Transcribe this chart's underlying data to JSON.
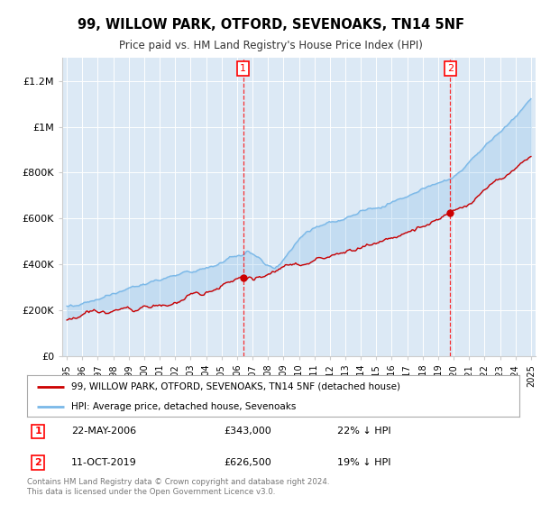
{
  "title": "99, WILLOW PARK, OTFORD, SEVENOAKS, TN14 5NF",
  "subtitle": "Price paid vs. HM Land Registry's House Price Index (HPI)",
  "bg_color": "#dce9f5",
  "plot_bg_color": "#dce9f5",
  "hpi_color": "#7ab8e8",
  "sale_color": "#cc0000",
  "sale1_date": 2006.39,
  "sale1_price": 343000,
  "sale1_label": "1",
  "sale2_date": 2019.78,
  "sale2_price": 626500,
  "sale2_label": "2",
  "legend_sale": "99, WILLOW PARK, OTFORD, SEVENOAKS, TN14 5NF (detached house)",
  "legend_hpi": "HPI: Average price, detached house, Sevenoaks",
  "footer": "Contains HM Land Registry data © Crown copyright and database right 2024.\nThis data is licensed under the Open Government Licence v3.0.",
  "ylim": [
    0,
    1300000
  ],
  "yticks": [
    0,
    200000,
    400000,
    600000,
    800000,
    1000000,
    1200000
  ],
  "ytick_labels": [
    "£0",
    "£200K",
    "£400K",
    "£600K",
    "£800K",
    "£1M",
    "£1.2M"
  ]
}
